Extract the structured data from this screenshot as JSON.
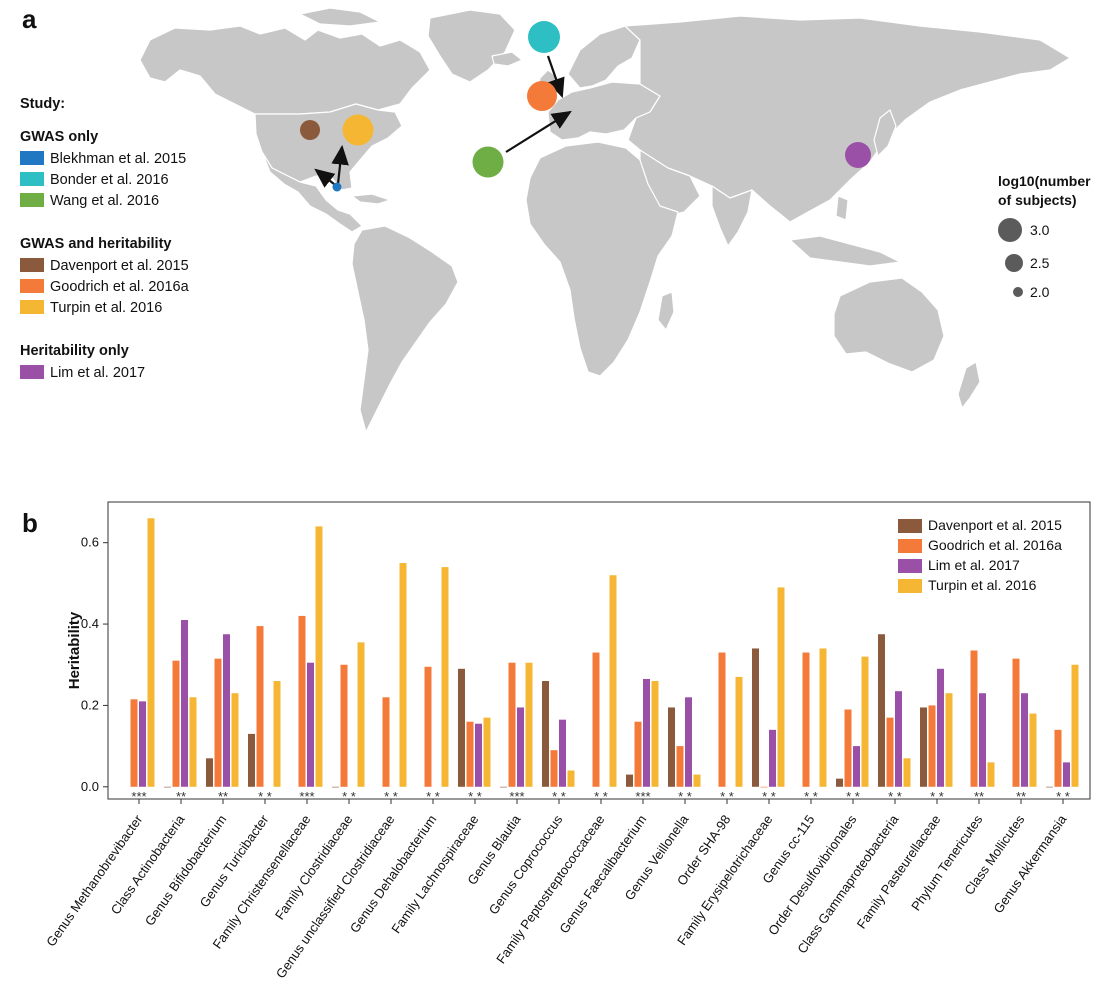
{
  "panel_a": {
    "letter": "a",
    "legend_title": "Study:",
    "groups": [
      {
        "heading": "GWAS only",
        "items": [
          {
            "label": "Blekhman et al. 2015",
            "color": "#1f78c1"
          },
          {
            "label": "Bonder et al. 2016",
            "color": "#2ebfc4"
          },
          {
            "label": "Wang et al. 2016",
            "color": "#6fae45"
          }
        ]
      },
      {
        "heading": "GWAS and heritability",
        "items": [
          {
            "label": "Davenport et al. 2015",
            "color": "#8b5a3c"
          },
          {
            "label": "Goodrich et al. 2016a",
            "color": "#f47a3a"
          },
          {
            "label": "Turpin et al. 2016",
            "color": "#f5b733"
          }
        ]
      },
      {
        "heading": "Heritability only",
        "items": [
          {
            "label": "Lim et al. 2017",
            "color": "#9b50a8"
          }
        ]
      }
    ],
    "size_legend": {
      "title_line1": "log10(number",
      "title_line2": "of subjects)",
      "entries": [
        "3.0",
        "2.5",
        "2.0"
      ]
    }
  },
  "chart_data": {
    "type": "bar",
    "panel_letter": "b",
    "ylabel": "Heritability",
    "ylim": [
      -0.03,
      0.7
    ],
    "yticks": [
      "0.0",
      "0.2",
      "0.4",
      "0.6"
    ],
    "legend_position": "top-right",
    "categories": [
      "Genus Methanobrevibacter",
      "Class Actinobacteria",
      "Genus Bifidobacterium",
      "Genus Turicibacter",
      "Family Christensenellaceae",
      "Family Clostridiaceae",
      "Genus unclassified Clostridiaceae",
      "Genus Dehalobacterium",
      "Family Lachnospiraceae",
      "Genus Blautia",
      "Genus Coprococcus",
      "Family Peptostreptococcaceae",
      "Genus Faecalibacterium",
      "Genus Veillonella",
      "Order SHA-98",
      "Family Erysipelotrichaceae",
      "Genus cc-115",
      "Order Desulfovibrionales",
      "Class Gammaproteobacteria",
      "Family Pasteurellaceae",
      "Phylum Tenericutes",
      "Class Mollicutes",
      "Genus Akkermansia"
    ],
    "series": [
      {
        "name": "Davenport et al. 2015",
        "color": "#8b5a3c",
        "values": [
          null,
          0.0,
          0.07,
          0.13,
          null,
          0.0,
          null,
          null,
          0.29,
          0.0,
          0.26,
          null,
          0.03,
          0.195,
          null,
          0.34,
          null,
          0.02,
          0.375,
          0.195,
          null,
          null,
          0.0
        ]
      },
      {
        "name": "Goodrich et al. 2016a",
        "color": "#f47a3a",
        "values": [
          0.215,
          0.31,
          0.315,
          0.395,
          0.42,
          0.3,
          0.22,
          0.295,
          0.16,
          0.305,
          0.09,
          0.33,
          0.16,
          0.1,
          0.33,
          0.0,
          0.33,
          0.19,
          0.17,
          0.2,
          0.335,
          0.315,
          0.14
        ]
      },
      {
        "name": "Lim et al. 2017",
        "color": "#9b50a8",
        "values": [
          0.21,
          0.41,
          0.375,
          null,
          0.305,
          null,
          null,
          null,
          0.155,
          0.195,
          0.165,
          null,
          0.265,
          0.22,
          null,
          0.14,
          null,
          0.1,
          0.235,
          0.29,
          0.23,
          0.23,
          0.06
        ]
      },
      {
        "name": "Turpin et al. 2016",
        "color": "#f5b733",
        "values": [
          0.66,
          0.22,
          0.23,
          0.26,
          0.64,
          0.355,
          0.55,
          0.54,
          0.17,
          0.305,
          0.04,
          0.52,
          0.26,
          0.03,
          0.27,
          0.49,
          0.34,
          0.32,
          0.07,
          0.23,
          0.06,
          0.18,
          0.3
        ]
      }
    ],
    "significance": [
      "***",
      "**",
      "**",
      "* *",
      "***",
      "* *",
      "* *",
      "* *",
      "* *",
      "***",
      "* *",
      "* *",
      "***",
      "* *",
      "* *",
      "* *",
      "* *",
      "* *",
      "* *",
      "* *",
      "**",
      "**",
      "* *"
    ]
  }
}
